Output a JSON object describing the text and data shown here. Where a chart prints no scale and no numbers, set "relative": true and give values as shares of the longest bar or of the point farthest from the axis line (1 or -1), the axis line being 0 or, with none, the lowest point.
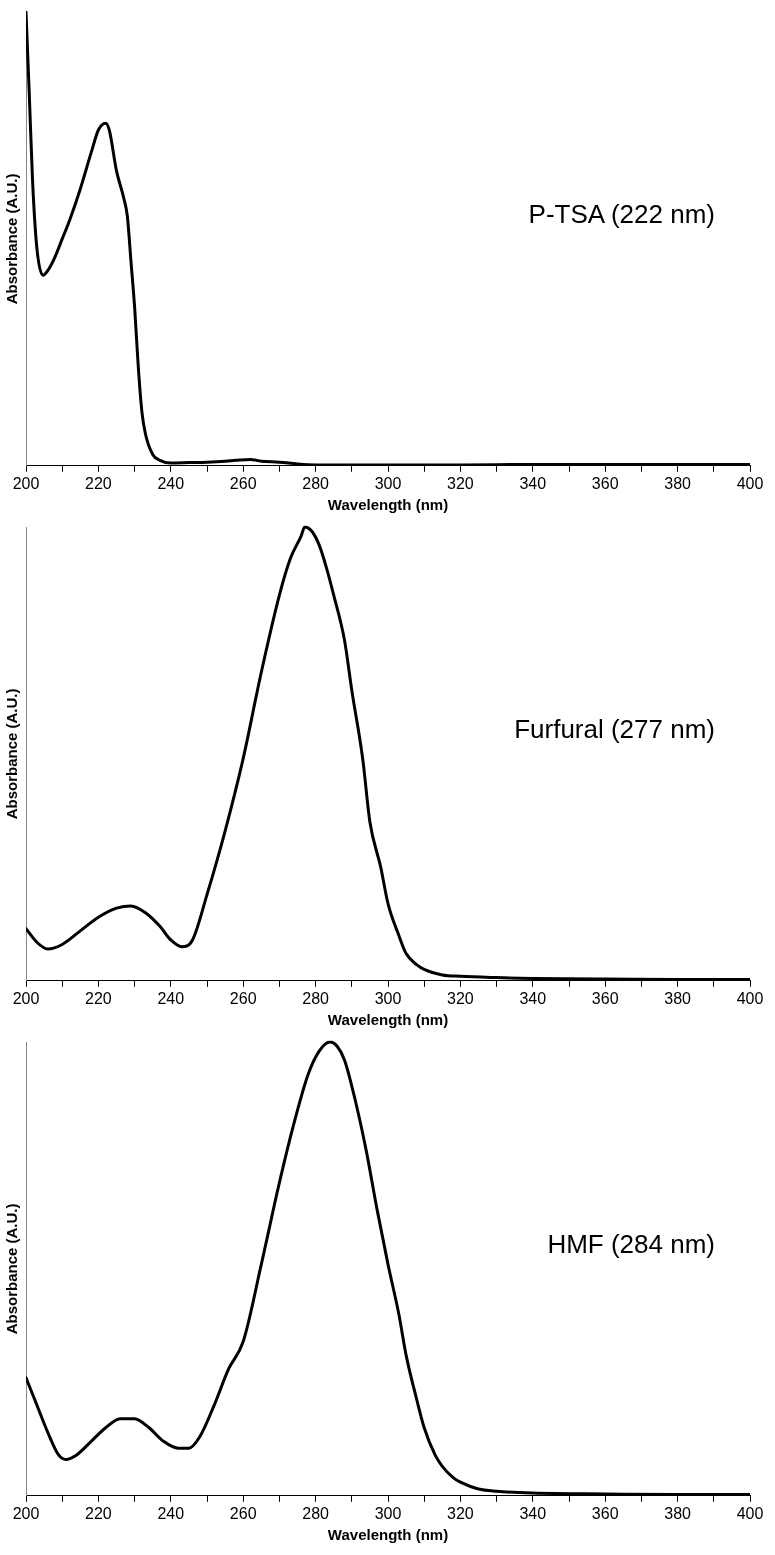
{
  "chart_data": [
    {
      "type": "line",
      "relative": true,
      "xlabel": "Wavelength (nm)",
      "ylabel": "Absorbance (A.U.)",
      "annotations": [
        "P-TSA (222 nm)"
      ],
      "xlim": [
        200,
        400
      ],
      "xticks": [
        200,
        {
          "value": 210,
          "label": null
        },
        220,
        {
          "value": 230,
          "label": null
        },
        240,
        {
          "value": 250,
          "label": null
        },
        260,
        {
          "value": 270,
          "label": null
        },
        280,
        {
          "value": 290,
          "label": null
        },
        300,
        {
          "value": 310,
          "label": null
        },
        320,
        {
          "value": 330,
          "label": null
        },
        340,
        {
          "value": 350,
          "label": null
        },
        360,
        {
          "value": 370,
          "label": null
        },
        380,
        {
          "value": 390,
          "label": null
        },
        400
      ],
      "grid": false,
      "legend": false,
      "marker": "none",
      "line_style": "solid",
      "series": [
        {
          "color": "#000000",
          "x": [
            200,
            200.9,
            201.8,
            203,
            204.7,
            206,
            208,
            210,
            212,
            215,
            218,
            220,
            222,
            223,
            225,
            227,
            228,
            229,
            230,
            231,
            232,
            233,
            235,
            237,
            240,
            245,
            250,
            255,
            258,
            262,
            265,
            270,
            275,
            280,
            300,
            320,
            340,
            360,
            380,
            400
          ],
          "values": [
            1,
            0.82,
            0.63,
            0.48,
            0.42,
            0.43,
            0.46,
            0.5,
            0.54,
            0.61,
            0.69,
            0.74,
            0.755,
            0.74,
            0.65,
            0.59,
            0.55,
            0.45,
            0.35,
            0.22,
            0.12,
            0.07,
            0.025,
            0.012,
            0.006,
            0.007,
            0.008,
            0.01,
            0.012,
            0.014,
            0.01,
            0.008,
            0.004,
            0.002,
            0.002,
            0.002,
            0.003,
            0.003,
            0.003,
            0.003
          ]
        }
      ]
    },
    {
      "type": "line",
      "relative": true,
      "xlabel": "Wavelength (nm)",
      "ylabel": "Absorbance (A.U.)",
      "annotations": [
        "Furfural (277 nm)"
      ],
      "xlim": [
        200,
        400
      ],
      "xticks": [
        200,
        {
          "value": 210,
          "label": null
        },
        220,
        {
          "value": 230,
          "label": null
        },
        240,
        {
          "value": 250,
          "label": null
        },
        260,
        {
          "value": 270,
          "label": null
        },
        280,
        {
          "value": 290,
          "label": null
        },
        300,
        {
          "value": 310,
          "label": null
        },
        320,
        {
          "value": 330,
          "label": null
        },
        340,
        {
          "value": 350,
          "label": null
        },
        360,
        {
          "value": 370,
          "label": null
        },
        380,
        {
          "value": 390,
          "label": null
        },
        400
      ],
      "grid": false,
      "legend": false,
      "marker": "none",
      "line_style": "solid",
      "series": [
        {
          "color": "#000000",
          "x": [
            200,
            203,
            206,
            210,
            215,
            220,
            225,
            229,
            233,
            237,
            240,
            243,
            246,
            250,
            255,
            260,
            265,
            270,
            273,
            276,
            277,
            279,
            281,
            283,
            285,
            288,
            290,
            293,
            295,
            298,
            300,
            303,
            305,
            308,
            310,
            315,
            320,
            330,
            340,
            360,
            380,
            400
          ],
          "values": [
            0.115,
            0.085,
            0.07,
            0.08,
            0.11,
            0.14,
            0.16,
            0.165,
            0.15,
            0.12,
            0.09,
            0.075,
            0.09,
            0.19,
            0.33,
            0.49,
            0.68,
            0.85,
            0.93,
            0.98,
            1,
            0.99,
            0.96,
            0.91,
            0.85,
            0.75,
            0.64,
            0.49,
            0.35,
            0.25,
            0.17,
            0.1,
            0.06,
            0.035,
            0.025,
            0.013,
            0.01,
            0.007,
            0.005,
            0.004,
            0.003,
            0.003
          ]
        }
      ]
    },
    {
      "type": "line",
      "relative": true,
      "xlabel": "Wavelength (nm)",
      "ylabel": "Absorbance (A.U.)",
      "annotations": [
        "HMF (284 nm)"
      ],
      "xlim": [
        200,
        400
      ],
      "xticks": [
        200,
        {
          "value": 210,
          "label": null
        },
        220,
        {
          "value": 230,
          "label": null
        },
        240,
        {
          "value": 250,
          "label": null
        },
        260,
        {
          "value": 270,
          "label": null
        },
        280,
        {
          "value": 290,
          "label": null
        },
        300,
        {
          "value": 310,
          "label": null
        },
        320,
        {
          "value": 330,
          "label": null
        },
        340,
        {
          "value": 350,
          "label": null
        },
        360,
        {
          "value": 370,
          "label": null
        },
        380,
        {
          "value": 390,
          "label": null
        },
        400
      ],
      "grid": false,
      "legend": false,
      "marker": "none",
      "line_style": "solid",
      "series": [
        {
          "color": "#000000",
          "x": [
            200,
            203,
            206,
            209,
            211,
            214,
            218,
            222,
            226,
            230,
            234,
            238,
            242,
            245,
            248,
            252,
            256,
            260,
            265,
            270,
            274,
            278,
            281,
            284,
            286,
            288,
            291,
            294,
            297,
            300,
            303,
            305,
            308,
            310,
            313,
            315,
            318,
            320,
            325,
            330,
            340,
            360,
            380,
            400
          ],
          "values": [
            0.26,
            0.2,
            0.14,
            0.09,
            0.08,
            0.09,
            0.12,
            0.15,
            0.17,
            0.17,
            0.15,
            0.12,
            0.105,
            0.105,
            0.13,
            0.2,
            0.28,
            0.34,
            0.51,
            0.69,
            0.82,
            0.93,
            0.98,
            1,
            0.99,
            0.96,
            0.87,
            0.76,
            0.63,
            0.51,
            0.4,
            0.31,
            0.21,
            0.15,
            0.09,
            0.065,
            0.04,
            0.03,
            0.015,
            0.01,
            0.006,
            0.004,
            0.003,
            0.003
          ]
        }
      ]
    }
  ]
}
